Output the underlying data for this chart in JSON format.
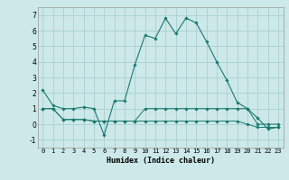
{
  "xlabel": "Humidex (Indice chaleur)",
  "bg_color": "#cce8e8",
  "grid_color": "#aad0d0",
  "line_color": "#1a7a6e",
  "xlim": [
    -0.5,
    23.5
  ],
  "ylim": [
    -1.5,
    7.5
  ],
  "yticks": [
    -1,
    0,
    1,
    2,
    3,
    4,
    5,
    6,
    7
  ],
  "xticks": [
    0,
    1,
    2,
    3,
    4,
    5,
    6,
    7,
    8,
    9,
    10,
    11,
    12,
    13,
    14,
    15,
    16,
    17,
    18,
    19,
    20,
    21,
    22,
    23
  ],
  "series1_x": [
    0,
    1,
    2,
    3,
    4,
    5,
    6,
    7,
    8,
    9,
    10,
    11,
    12,
    13,
    14,
    15,
    16,
    17,
    18,
    19,
    20,
    21,
    22,
    23
  ],
  "series1_y": [
    2.2,
    1.2,
    1.0,
    1.0,
    1.1,
    1.0,
    -0.7,
    1.5,
    1.5,
    3.8,
    5.7,
    5.5,
    6.8,
    5.8,
    6.8,
    6.5,
    5.3,
    4.0,
    2.8,
    1.4,
    1.0,
    0.4,
    -0.3,
    -0.2
  ],
  "series2_x": [
    0,
    1,
    2,
    3,
    4,
    5,
    6,
    7,
    8,
    9,
    10,
    11,
    12,
    13,
    14,
    15,
    16,
    17,
    18,
    19,
    20,
    21,
    22,
    23
  ],
  "series2_y": [
    1.0,
    1.0,
    0.3,
    0.3,
    0.3,
    0.2,
    0.2,
    0.2,
    0.2,
    0.2,
    1.0,
    1.0,
    1.0,
    1.0,
    1.0,
    1.0,
    1.0,
    1.0,
    1.0,
    1.0,
    1.0,
    0.0,
    0.0,
    0.0
  ],
  "series3_x": [
    0,
    1,
    2,
    3,
    4,
    5,
    6,
    7,
    8,
    9,
    10,
    11,
    12,
    13,
    14,
    15,
    16,
    17,
    18,
    19,
    20,
    21,
    22,
    23
  ],
  "series3_y": [
    1.0,
    1.0,
    0.3,
    0.3,
    0.3,
    0.2,
    0.2,
    0.2,
    0.2,
    0.2,
    0.2,
    0.2,
    0.2,
    0.2,
    0.2,
    0.2,
    0.2,
    0.2,
    0.2,
    0.2,
    0.0,
    -0.2,
    -0.2,
    -0.2
  ]
}
